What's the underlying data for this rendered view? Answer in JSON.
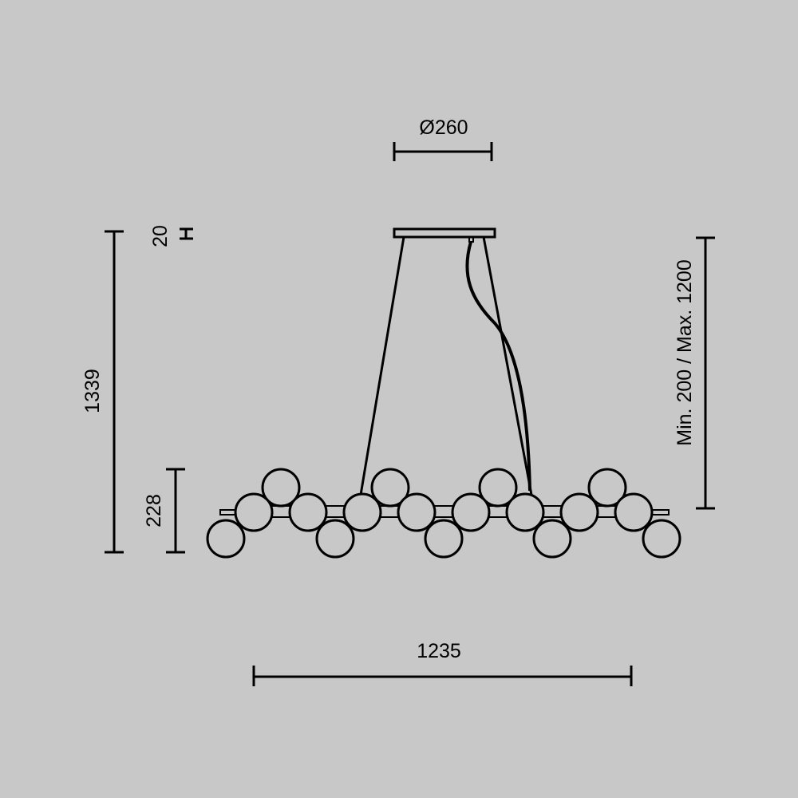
{
  "dimensions": {
    "canopy_diameter": "Ø260",
    "canopy_height": "20",
    "total_height": "1339",
    "body_height": "228",
    "suspension_range": "Min. 200 / Max. 1200",
    "width": "1235"
  },
  "colors": {
    "background": "#c8c8c8",
    "line": "#000000"
  }
}
